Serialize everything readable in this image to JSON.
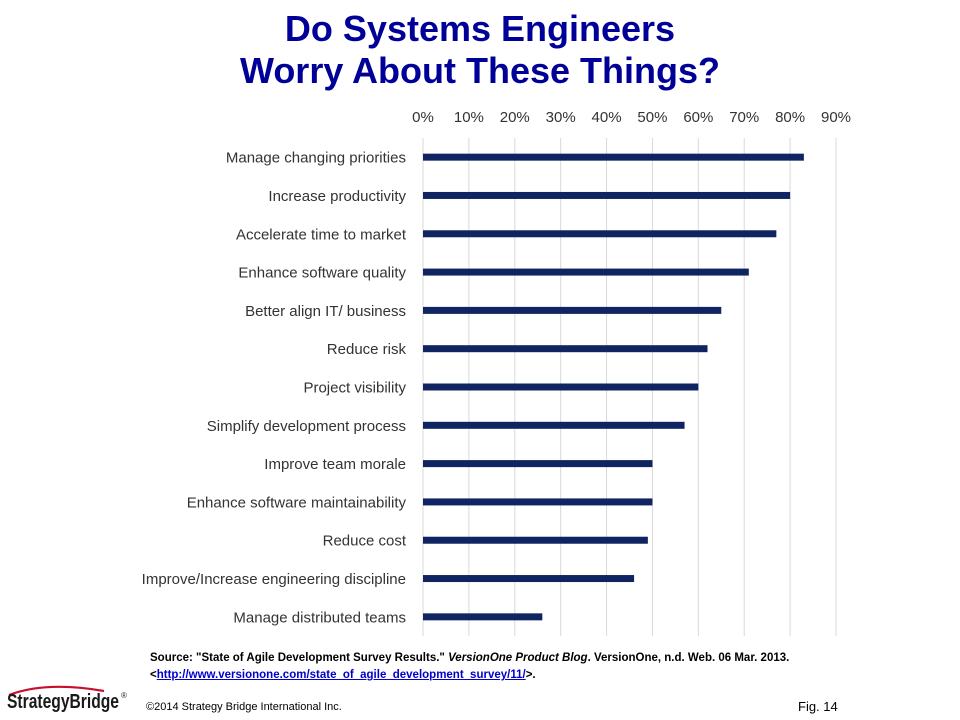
{
  "page": {
    "title_line1": "Do Systems Engineers",
    "title_line2": "Worry About These Things?",
    "source": {
      "prefix": "Source:  \"State of Agile Development Survey Results.\" ",
      "publication": "VersionOne Product Blog",
      "middle": ". VersionOne, n.d. Web. 06 Mar. 2013. <",
      "url": "http://www.versionone.com/state_of_agile_development_survey/11/",
      "suffix": ">."
    },
    "logo_text": "StrategyBridge",
    "logo_mark": "®",
    "copyright": "©2014 Strategy Bridge International Inc.",
    "figure_label": "Fig. 14"
  },
  "chart_data": {
    "type": "bar",
    "orientation": "horizontal",
    "categories": [
      "Manage changing priorities",
      "Increase productivity",
      "Accelerate time to market",
      "Enhance software quality",
      "Better align IT/ business",
      "Reduce risk",
      "Project visibility",
      "Simplify development process",
      "Improve team morale",
      "Enhance software maintainability",
      "Reduce cost",
      "Improve/Increase engineering discipline",
      "Manage distributed teams"
    ],
    "values": [
      83,
      80,
      77,
      71,
      65,
      62,
      60,
      57,
      50,
      50,
      49,
      46,
      26
    ],
    "xlim": [
      0,
      90
    ],
    "ticks": [
      0,
      10,
      20,
      30,
      40,
      50,
      60,
      70,
      80,
      90
    ],
    "tick_labels": [
      "0%",
      "10%",
      "20%",
      "30%",
      "40%",
      "50%",
      "60%",
      "70%",
      "80%",
      "90%"
    ],
    "axis_position": "top",
    "grid": true,
    "bar_color": "#0f2460",
    "grid_color": "#d9d9d9"
  }
}
